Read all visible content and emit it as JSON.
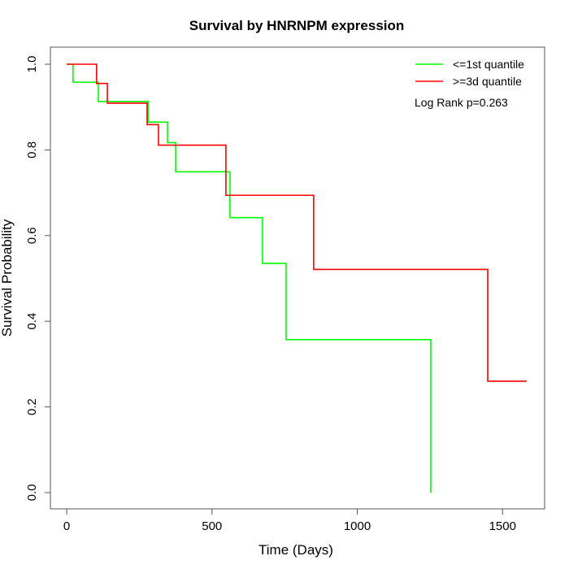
{
  "chart_data": {
    "type": "line",
    "subtype": "kaplan-meier step",
    "title": "Survival by HNRNPM expression",
    "xlabel": "Time (Days)",
    "ylabel": "Survival Probability",
    "xlim": [
      -50,
      1650
    ],
    "ylim": [
      -0.04,
      1.04
    ],
    "xticks": [
      0,
      500,
      1000,
      1500
    ],
    "xtick_labels": [
      "0",
      "500",
      "1000",
      "1500"
    ],
    "yticks": [
      0.0,
      0.2,
      0.4,
      0.6,
      0.8,
      1.0
    ],
    "ytick_labels": [
      "0.0",
      "0.2",
      "0.4",
      "0.6",
      "0.8",
      "1.0"
    ],
    "grid": false,
    "legend_position": "top-right",
    "annotation": "Log Rank p=0.263",
    "series": [
      {
        "name": "<=1st quantile",
        "color": "#00ff00",
        "x": [
          0,
          22,
          109,
          280,
          347,
          375,
          562,
          674,
          755,
          1253
        ],
        "y": [
          1.0,
          0.958,
          0.913,
          0.865,
          0.817,
          0.749,
          0.642,
          0.535,
          0.357,
          0.0
        ],
        "end_x": 1253
      },
      {
        "name": ">=3d quantile",
        "color": "#ff0000",
        "x": [
          0,
          103,
          140,
          277,
          316,
          548,
          850,
          1449
        ],
        "y": [
          1.0,
          0.955,
          0.909,
          0.859,
          0.811,
          0.694,
          0.521,
          0.26
        ],
        "end_x": 1583
      }
    ]
  }
}
